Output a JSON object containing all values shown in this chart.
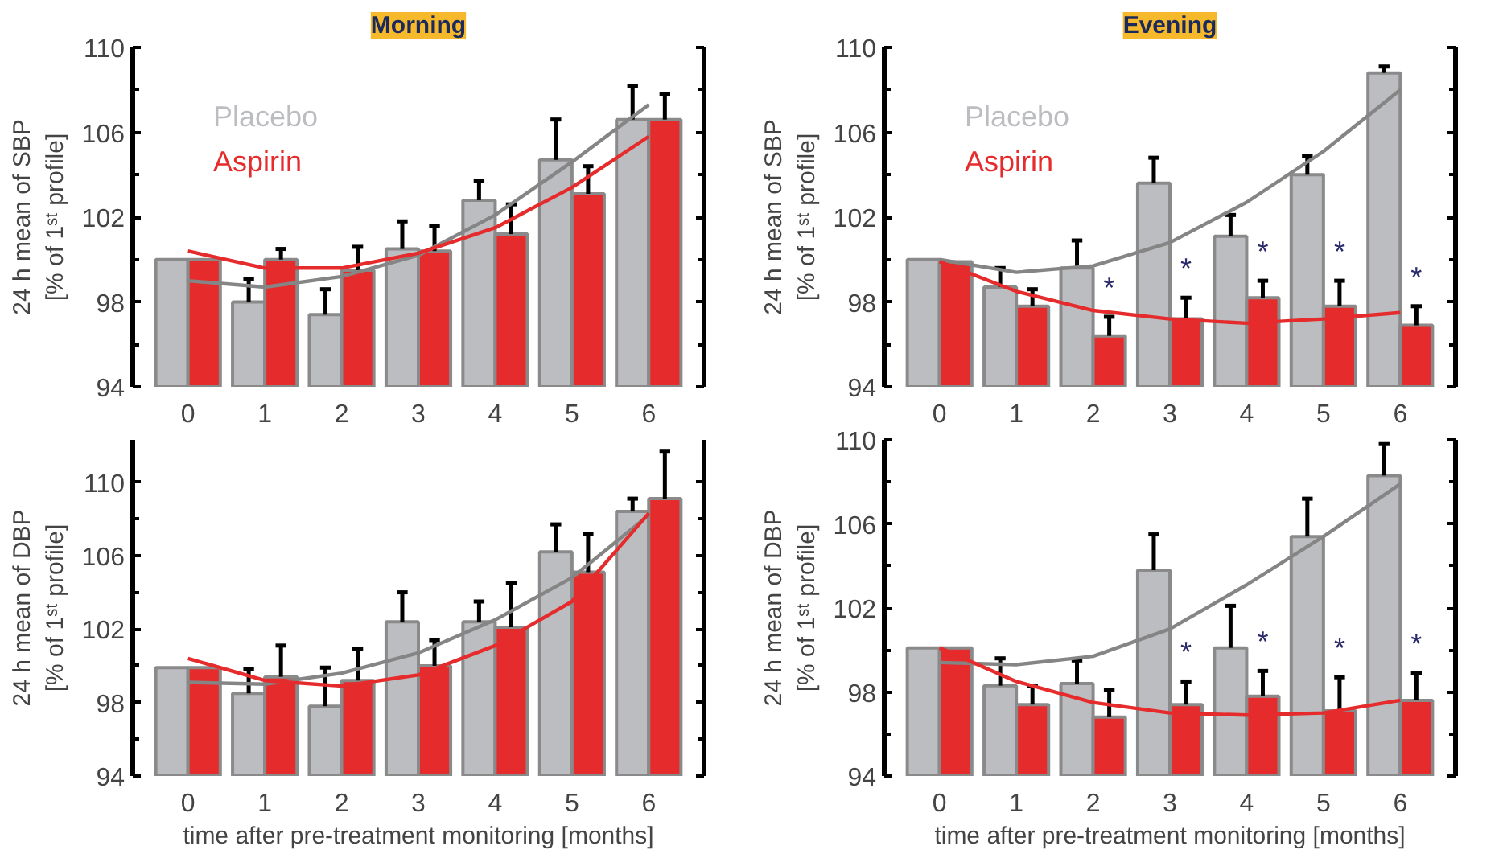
{
  "chart_data": [
    {
      "type": "bar",
      "title": "Morning",
      "ylabel": "24 h mean of SBP\n[% of 1ˢᵗ profile]",
      "categories": [
        "0",
        "1",
        "2",
        "3",
        "4",
        "5",
        "6"
      ],
      "ylim": [
        94,
        110
      ],
      "yticks": [
        94,
        98,
        102,
        106,
        110
      ],
      "grid": false,
      "legend": "top left",
      "series": [
        {
          "name": "Placebo",
          "color": "#bcbdc0",
          "values": [
            100.0,
            98.0,
            97.4,
            100.5,
            102.8,
            104.7,
            106.6
          ],
          "errors": [
            null,
            [
              98.0,
              99.1
            ],
            [
              97.4,
              98.6
            ],
            [
              100.5,
              101.8
            ],
            [
              102.8,
              103.7
            ],
            [
              104.7,
              106.6
            ],
            [
              106.6,
              108.2
            ]
          ]
        },
        {
          "name": "Aspirin",
          "color": "#e52b2c",
          "values": [
            100.0,
            100.0,
            99.5,
            100.4,
            101.2,
            103.1,
            106.6
          ],
          "errors": [
            null,
            [
              100.0,
              100.5
            ],
            [
              99.5,
              100.6
            ],
            [
              100.4,
              101.6
            ],
            [
              101.2,
              102.6
            ],
            [
              103.1,
              104.4
            ],
            [
              106.6,
              107.8
            ]
          ]
        },
        {
          "type": "line",
          "color": "#858585",
          "values": [
            99.0,
            98.7,
            99.2,
            100.2,
            102.1,
            104.6,
            107.3
          ]
        },
        {
          "type": "line",
          "color": "#e52b2c",
          "values": [
            100.4,
            99.6,
            99.6,
            100.3,
            101.5,
            103.4,
            105.8
          ]
        }
      ]
    },
    {
      "type": "bar",
      "title": "Evening",
      "ylabel": "24 h mean of SBP\n[% of 1ˢᵗ profile]",
      "categories": [
        "0",
        "1",
        "2",
        "3",
        "4",
        "5",
        "6"
      ],
      "ylim": [
        94,
        110
      ],
      "yticks": [
        94,
        98,
        102,
        106,
        110
      ],
      "grid": false,
      "legend": "top left",
      "annotations": [
        {
          "text": "*",
          "x": "2",
          "y": 97.3
        },
        {
          "text": "*",
          "x": "3",
          "y": 98.2
        },
        {
          "text": "*",
          "x": "4",
          "y": 99.0
        },
        {
          "text": "*",
          "x": "5",
          "y": 99.0
        },
        {
          "text": "*",
          "x": "6",
          "y": 97.8
        }
      ],
      "series": [
        {
          "name": "Placebo",
          "color": "#bcbdc0",
          "values": [
            100.0,
            98.7,
            99.6,
            103.6,
            101.1,
            104.0,
            108.8
          ],
          "errors": [
            null,
            [
              98.7,
              99.6
            ],
            [
              99.6,
              100.9
            ],
            [
              103.6,
              104.8
            ],
            [
              101.1,
              102.1
            ],
            [
              104.0,
              104.9
            ],
            [
              108.8,
              109.1
            ]
          ]
        },
        {
          "name": "Aspirin",
          "color": "#e52b2c",
          "values": [
            99.9,
            97.8,
            96.4,
            97.2,
            98.2,
            97.8,
            96.9
          ],
          "errors": [
            null,
            [
              97.8,
              98.6
            ],
            [
              96.4,
              97.3
            ],
            [
              97.2,
              98.2
            ],
            [
              98.2,
              99.0
            ],
            [
              97.8,
              99.0
            ],
            [
              96.9,
              97.8
            ]
          ]
        },
        {
          "type": "line",
          "color": "#858585",
          "values": [
            100.0,
            99.4,
            99.7,
            100.8,
            102.7,
            105.1,
            108.0
          ]
        },
        {
          "type": "line",
          "color": "#e52b2c",
          "values": [
            99.9,
            98.5,
            97.6,
            97.2,
            97.0,
            97.2,
            97.5
          ]
        }
      ]
    },
    {
      "type": "bar",
      "ylabel": "24 h mean of DBP\n[% of 1ˢᵗ profile]",
      "xlabel": "time after pre-treatment monitoring [months]",
      "categories": [
        "0",
        "1",
        "2",
        "3",
        "4",
        "5",
        "6"
      ],
      "ylim": [
        94,
        112.3
      ],
      "yticks": [
        94,
        98,
        102,
        106,
        110
      ],
      "grid": false,
      "series": [
        {
          "color": "#bcbdc0",
          "values": [
            99.9,
            98.5,
            97.8,
            102.4,
            102.4,
            106.2,
            108.4
          ],
          "errors": [
            null,
            [
              98.5,
              99.8
            ],
            [
              97.8,
              99.9
            ],
            [
              102.4,
              104.0
            ],
            [
              102.4,
              103.5
            ],
            [
              106.2,
              107.7
            ],
            [
              108.4,
              109.1
            ]
          ]
        },
        {
          "color": "#e52b2c",
          "values": [
            99.9,
            99.4,
            99.2,
            100.0,
            102.1,
            105.1,
            109.1
          ],
          "errors": [
            null,
            [
              99.4,
              101.1
            ],
            [
              99.2,
              100.9
            ],
            [
              100.0,
              101.4
            ],
            [
              102.1,
              104.5
            ],
            [
              105.1,
              107.2
            ],
            [
              109.1,
              111.7
            ]
          ]
        },
        {
          "type": "line",
          "color": "#858585",
          "values": [
            99.1,
            99.0,
            99.6,
            100.7,
            102.5,
            104.8,
            108.2
          ]
        },
        {
          "type": "line",
          "color": "#e52b2c",
          "values": [
            100.4,
            99.2,
            98.9,
            99.5,
            101.1,
            103.5,
            108.3
          ]
        }
      ]
    },
    {
      "type": "bar",
      "ylabel": "24 h mean of DBP\n[% of 1ˢᵗ profile]",
      "xlabel": "time after pre-treatment monitoring [months]",
      "categories": [
        "0",
        "1",
        "2",
        "3",
        "4",
        "5",
        "6"
      ],
      "ylim": [
        94,
        110
      ],
      "yticks": [
        94,
        98,
        102,
        106,
        110
      ],
      "grid": false,
      "annotations": [
        {
          "text": "*",
          "x": "3",
          "y": 98.5
        },
        {
          "text": "*",
          "x": "4",
          "y": 99.0
        },
        {
          "text": "*",
          "x": "5",
          "y": 98.7
        },
        {
          "text": "*",
          "x": "6",
          "y": 98.9
        }
      ],
      "series": [
        {
          "color": "#bcbdc0",
          "values": [
            100.1,
            98.3,
            98.4,
            103.8,
            100.1,
            105.4,
            108.3
          ],
          "errors": [
            null,
            [
              98.3,
              99.6
            ],
            [
              98.4,
              99.5
            ],
            [
              103.8,
              105.5
            ],
            [
              100.1,
              102.1
            ],
            [
              105.4,
              107.2
            ],
            [
              108.3,
              109.8
            ]
          ]
        },
        {
          "color": "#e52b2c",
          "values": [
            100.1,
            97.4,
            96.8,
            97.4,
            97.8,
            97.1,
            97.6
          ],
          "errors": [
            null,
            [
              97.4,
              98.3
            ],
            [
              96.8,
              98.1
            ],
            [
              97.4,
              98.5
            ],
            [
              97.8,
              99.0
            ],
            [
              97.1,
              98.7
            ],
            [
              97.6,
              98.9
            ]
          ]
        },
        {
          "type": "line",
          "color": "#858585",
          "values": [
            99.4,
            99.3,
            99.7,
            101.0,
            103.1,
            105.4,
            107.9
          ]
        },
        {
          "type": "line",
          "color": "#e52b2c",
          "values": [
            100.1,
            98.5,
            97.5,
            97.0,
            96.9,
            97.0,
            97.6
          ]
        }
      ]
    }
  ]
}
